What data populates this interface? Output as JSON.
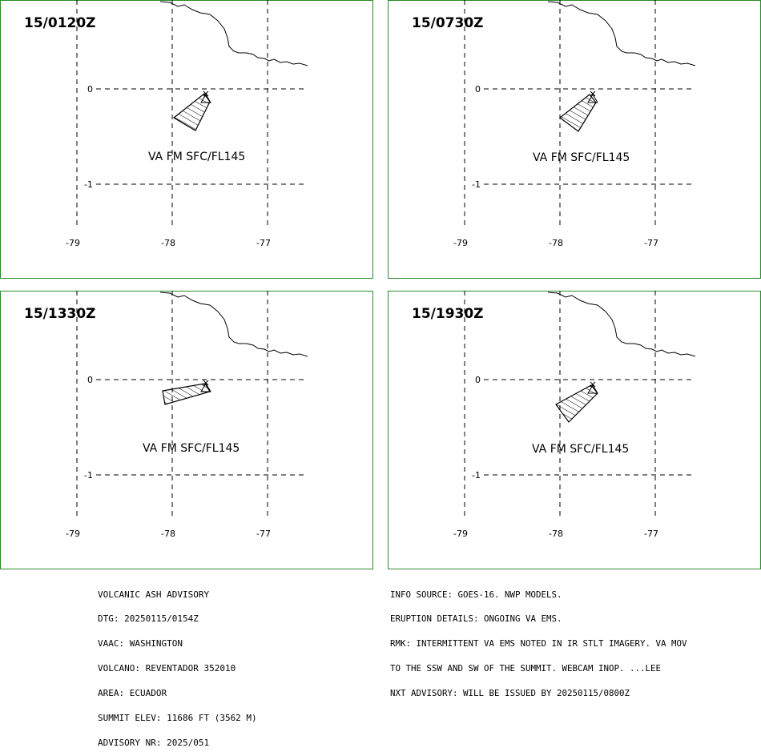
{
  "panels": [
    {
      "title": "15/0120Z",
      "va_label": "VA FM SFC/FL145"
    },
    {
      "title": "15/0730Z",
      "va_label": "VA FM SFC/FL145"
    },
    {
      "title": "15/1330Z",
      "va_label": "VA FM SFC/FL145"
    },
    {
      "title": "15/1930Z",
      "va_label": "VA FM SFC/FL145"
    }
  ],
  "axes": {
    "lon_labels": [
      "-79",
      "-78",
      "-77"
    ],
    "lat_labels": [
      "0",
      "-1"
    ]
  },
  "advisory_left": [
    "VOLCANIC ASH ADVISORY",
    "DTG: 20250115/0154Z",
    "VAAC: WASHINGTON",
    "VOLCANO: REVENTADOR 352010",
    "AREA: ECUADOR",
    "SUMMIT ELEV: 11686 FT (3562 M)",
    "ADVISORY NR: 2025/051"
  ],
  "advisory_right": [
    "INFO SOURCE: GOES-16. NWP MODELS.",
    "ERUPTION DETAILS: ONGOING VA EMS.",
    "RMK: INTERMITTENT VA EMS NOTED IN IR STLT IMAGERY. VA MOV",
    "TO THE SSW AND SW OF THE SUMMIT. WEBCAM INOP. ...LEE",
    "NXT ADVISORY: WILL BE ISSUED BY 20250115/0800Z"
  ]
}
